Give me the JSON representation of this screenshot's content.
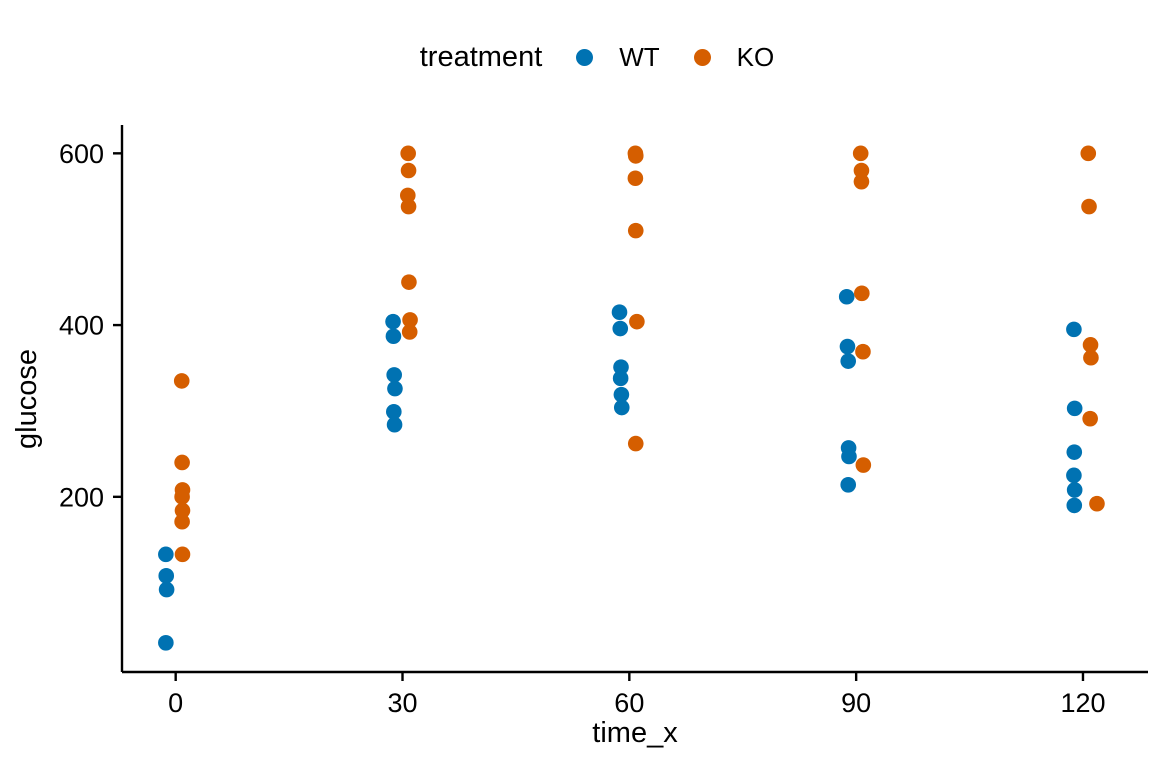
{
  "chart_data": {
    "type": "scatter",
    "title": "",
    "legend_title": "treatment",
    "xlabel": "time_x",
    "ylabel": "glucose",
    "x_ticks": [
      0,
      30,
      60,
      90,
      120
    ],
    "y_ticks": [
      200,
      400,
      600
    ],
    "x_range": [
      -7.1,
      128.6
    ],
    "y_range": [
      -4,
      633
    ],
    "grid": false,
    "legend_position": "top-center",
    "point_note": "points are [time_x, glucose, jitter_offset_in_time_units]",
    "series": [
      {
        "name": "WT",
        "color": "#0072B2",
        "points": [
          [
            0,
            133,
            -1.3
          ],
          [
            0,
            108,
            -1.25
          ],
          [
            0,
            92,
            -1.2
          ],
          [
            0,
            30,
            -1.3
          ],
          [
            30,
            404,
            -1.25
          ],
          [
            30,
            387,
            -1.2
          ],
          [
            30,
            342,
            -1.1
          ],
          [
            30,
            326,
            -1.0
          ],
          [
            30,
            299,
            -1.15
          ],
          [
            30,
            284,
            -1.05
          ],
          [
            60,
            415,
            -1.3
          ],
          [
            60,
            396,
            -1.2
          ],
          [
            60,
            351,
            -1.1
          ],
          [
            60,
            338,
            -1.15
          ],
          [
            60,
            319,
            -1.05
          ],
          [
            60,
            304,
            -1.0
          ],
          [
            90,
            433,
            -1.25
          ],
          [
            90,
            375,
            -1.15
          ],
          [
            90,
            358,
            -1.05
          ],
          [
            90,
            257,
            -1.0
          ],
          [
            90,
            247,
            -0.95
          ],
          [
            90,
            214,
            -1.05
          ],
          [
            120,
            395,
            -1.2
          ],
          [
            120,
            303,
            -1.1
          ],
          [
            120,
            252,
            -1.15
          ],
          [
            120,
            225,
            -1.2
          ],
          [
            120,
            208,
            -1.1
          ],
          [
            120,
            190,
            -1.15
          ]
        ]
      },
      {
        "name": "KO",
        "color": "#D55E00",
        "points": [
          [
            0,
            335,
            0.8
          ],
          [
            0,
            240,
            0.85
          ],
          [
            0,
            208,
            0.9
          ],
          [
            0,
            200,
            0.85
          ],
          [
            0,
            184,
            0.9
          ],
          [
            0,
            171,
            0.85
          ],
          [
            0,
            133,
            0.9
          ],
          [
            30,
            600,
            0.75
          ],
          [
            30,
            580,
            0.8
          ],
          [
            30,
            551,
            0.7
          ],
          [
            30,
            538,
            0.8
          ],
          [
            30,
            450,
            0.85
          ],
          [
            30,
            406,
            1.0
          ],
          [
            30,
            392,
            0.95
          ],
          [
            60,
            600,
            0.8
          ],
          [
            60,
            597,
            0.85
          ],
          [
            60,
            571,
            0.8
          ],
          [
            60,
            510,
            0.85
          ],
          [
            60,
            404,
            1.0
          ],
          [
            60,
            262,
            0.85
          ],
          [
            90,
            600,
            0.6
          ],
          [
            90,
            580,
            0.7
          ],
          [
            90,
            567,
            0.7
          ],
          [
            90,
            437,
            0.75
          ],
          [
            90,
            369,
            0.9
          ],
          [
            90,
            237,
            0.95
          ],
          [
            120,
            600,
            0.7
          ],
          [
            120,
            538,
            0.8
          ],
          [
            120,
            377,
            1.0
          ],
          [
            120,
            362,
            1.05
          ],
          [
            120,
            291,
            0.95
          ],
          [
            120,
            192,
            1.85
          ]
        ]
      }
    ]
  }
}
